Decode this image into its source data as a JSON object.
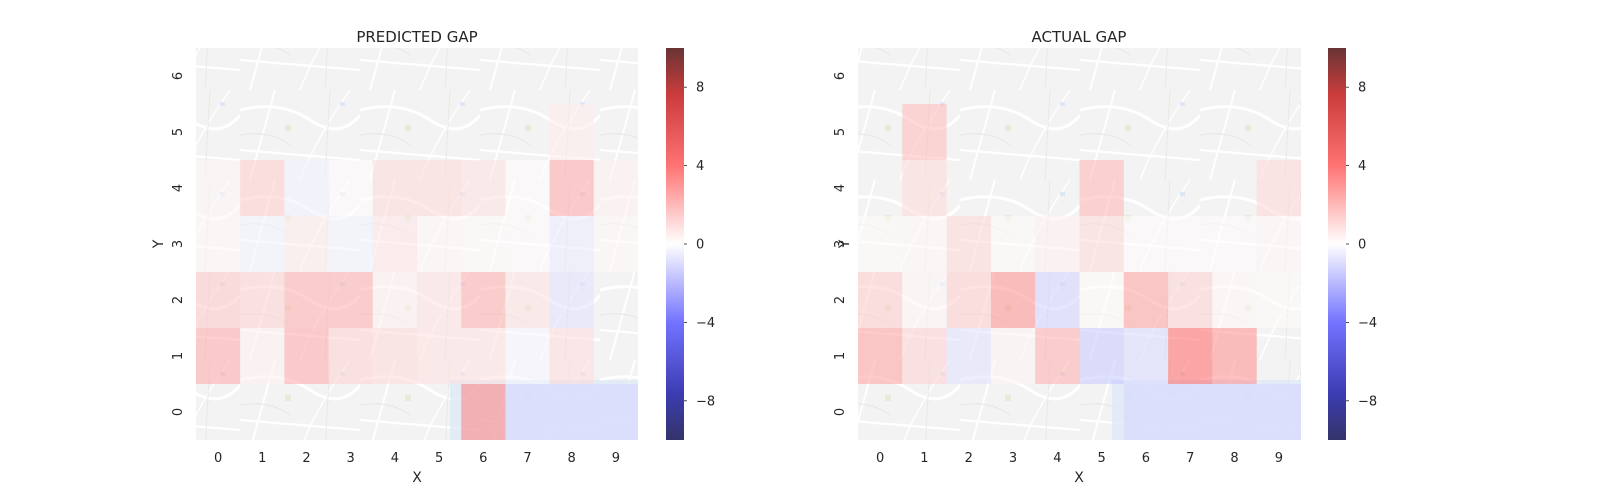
{
  "chart_data": [
    {
      "type": "heatmap",
      "title": "PREDICTED GAP",
      "xlabel": "X",
      "ylabel": "Y",
      "x_ticks": [
        "0",
        "1",
        "2",
        "3",
        "4",
        "5",
        "6",
        "7",
        "8",
        "9"
      ],
      "y_ticks": [
        "0",
        "1",
        "2",
        "3",
        "4",
        "5",
        "6"
      ],
      "zlim": [
        -10,
        10
      ],
      "colorbar_ticks": [
        8,
        4,
        0,
        -4,
        -8
      ],
      "colorbar_tick_labels": [
        "8",
        "4",
        "0",
        "−4",
        "−8"
      ],
      "cells": [
        {
          "x": 0,
          "y": 1,
          "v": 3.5
        },
        {
          "x": 1,
          "y": 1,
          "v": 0.6
        },
        {
          "x": 2,
          "y": 1,
          "v": 3.5
        },
        {
          "x": 3,
          "y": 1,
          "v": 1.8
        },
        {
          "x": 4,
          "y": 1,
          "v": 1.5
        },
        {
          "x": 5,
          "y": 1,
          "v": 1.2
        },
        {
          "x": 6,
          "y": 1,
          "v": 1.2
        },
        {
          "x": 7,
          "y": 1,
          "v": -0.4
        },
        {
          "x": 8,
          "y": 1,
          "v": 1.4
        },
        {
          "x": 0,
          "y": 2,
          "v": 2.2
        },
        {
          "x": 1,
          "y": 2,
          "v": 1.8
        },
        {
          "x": 2,
          "y": 2,
          "v": 3.2
        },
        {
          "x": 3,
          "y": 2,
          "v": 3.2
        },
        {
          "x": 4,
          "y": 2,
          "v": 0.6
        },
        {
          "x": 5,
          "y": 2,
          "v": 1.2
        },
        {
          "x": 6,
          "y": 2,
          "v": 3.2
        },
        {
          "x": 7,
          "y": 2,
          "v": 1.2
        },
        {
          "x": 8,
          "y": 2,
          "v": -1.2
        },
        {
          "x": 0,
          "y": 3,
          "v": 0.3
        },
        {
          "x": 1,
          "y": 3,
          "v": -0.5
        },
        {
          "x": 2,
          "y": 3,
          "v": 0.8
        },
        {
          "x": 3,
          "y": 3,
          "v": -0.5
        },
        {
          "x": 4,
          "y": 3,
          "v": 1.0
        },
        {
          "x": 5,
          "y": 3,
          "v": 0.3
        },
        {
          "x": 6,
          "y": 3,
          "v": 0.2
        },
        {
          "x": 7,
          "y": 3,
          "v": 0.1
        },
        {
          "x": 8,
          "y": 3,
          "v": -0.8
        },
        {
          "x": 9,
          "y": 3,
          "v": 0.3
        },
        {
          "x": 0,
          "y": 4,
          "v": 0.4
        },
        {
          "x": 1,
          "y": 4,
          "v": 2.0
        },
        {
          "x": 2,
          "y": 4,
          "v": -0.6
        },
        {
          "x": 3,
          "y": 4,
          "v": 0.1
        },
        {
          "x": 4,
          "y": 4,
          "v": 1.5
        },
        {
          "x": 5,
          "y": 4,
          "v": 1.5
        },
        {
          "x": 6,
          "y": 4,
          "v": 1.2
        },
        {
          "x": 7,
          "y": 4,
          "v": 0.1
        },
        {
          "x": 8,
          "y": 4,
          "v": 3.5
        },
        {
          "x": 9,
          "y": 4,
          "v": 0.6
        },
        {
          "x": 8,
          "y": 5,
          "v": 0.8
        },
        {
          "x": 6,
          "y": 0,
          "v": 5.0
        },
        {
          "x": 7,
          "y": 0,
          "v": -1.6
        },
        {
          "x": 8,
          "y": 0,
          "v": -1.6
        },
        {
          "x": 9,
          "y": 0,
          "v": -1.6
        }
      ]
    },
    {
      "type": "heatmap",
      "title": "ACTUAL GAP",
      "xlabel": "X",
      "ylabel": "Y",
      "x_ticks": [
        "0",
        "1",
        "2",
        "3",
        "4",
        "5",
        "6",
        "7",
        "8",
        "9"
      ],
      "y_ticks": [
        "0",
        "1",
        "2",
        "3",
        "4",
        "5",
        "6"
      ],
      "zlim": [
        -10,
        10
      ],
      "colorbar_ticks": [
        8,
        4,
        0,
        -4,
        -8
      ],
      "colorbar_tick_labels": [
        "8",
        "4",
        "0",
        "−4",
        "−8"
      ],
      "cells": [
        {
          "x": 0,
          "y": 1,
          "v": 3.8
        },
        {
          "x": 1,
          "y": 1,
          "v": 1.8
        },
        {
          "x": 2,
          "y": 1,
          "v": -1.2
        },
        {
          "x": 3,
          "y": 1,
          "v": 0.5
        },
        {
          "x": 4,
          "y": 1,
          "v": 3.2
        },
        {
          "x": 5,
          "y": 1,
          "v": -2.2
        },
        {
          "x": 6,
          "y": 1,
          "v": -1.5
        },
        {
          "x": 7,
          "y": 1,
          "v": 6.0
        },
        {
          "x": 8,
          "y": 1,
          "v": 4.5
        },
        {
          "x": 0,
          "y": 2,
          "v": 2.0
        },
        {
          "x": 1,
          "y": 2,
          "v": 0.4
        },
        {
          "x": 2,
          "y": 2,
          "v": 2.0
        },
        {
          "x": 3,
          "y": 2,
          "v": 4.5
        },
        {
          "x": 4,
          "y": 2,
          "v": -1.8
        },
        {
          "x": 5,
          "y": 2,
          "v": 0.2
        },
        {
          "x": 6,
          "y": 2,
          "v": 3.8
        },
        {
          "x": 7,
          "y": 2,
          "v": 1.8
        },
        {
          "x": 8,
          "y": 2,
          "v": 0.3
        },
        {
          "x": 9,
          "y": 2,
          "v": 0.2
        },
        {
          "x": 0,
          "y": 3,
          "v": 0.2
        },
        {
          "x": 1,
          "y": 3,
          "v": 0.3
        },
        {
          "x": 2,
          "y": 3,
          "v": 1.6
        },
        {
          "x": 3,
          "y": 3,
          "v": 0.2
        },
        {
          "x": 4,
          "y": 3,
          "v": 0.6
        },
        {
          "x": 5,
          "y": 3,
          "v": 1.5
        },
        {
          "x": 6,
          "y": 3,
          "v": 0.1
        },
        {
          "x": 7,
          "y": 3,
          "v": 0.1
        },
        {
          "x": 8,
          "y": 3,
          "v": 0.1
        },
        {
          "x": 9,
          "y": 3,
          "v": 0.3
        },
        {
          "x": 1,
          "y": 4,
          "v": 1.5
        },
        {
          "x": 5,
          "y": 4,
          "v": 3.0
        },
        {
          "x": 9,
          "y": 4,
          "v": 1.6
        },
        {
          "x": 1,
          "y": 5,
          "v": 2.8
        },
        {
          "x": 6,
          "y": 0,
          "v": -1.6
        },
        {
          "x": 7,
          "y": 0,
          "v": -1.6
        },
        {
          "x": 8,
          "y": 0,
          "v": -1.6
        },
        {
          "x": 9,
          "y": 0,
          "v": -1.6
        }
      ]
    }
  ]
}
